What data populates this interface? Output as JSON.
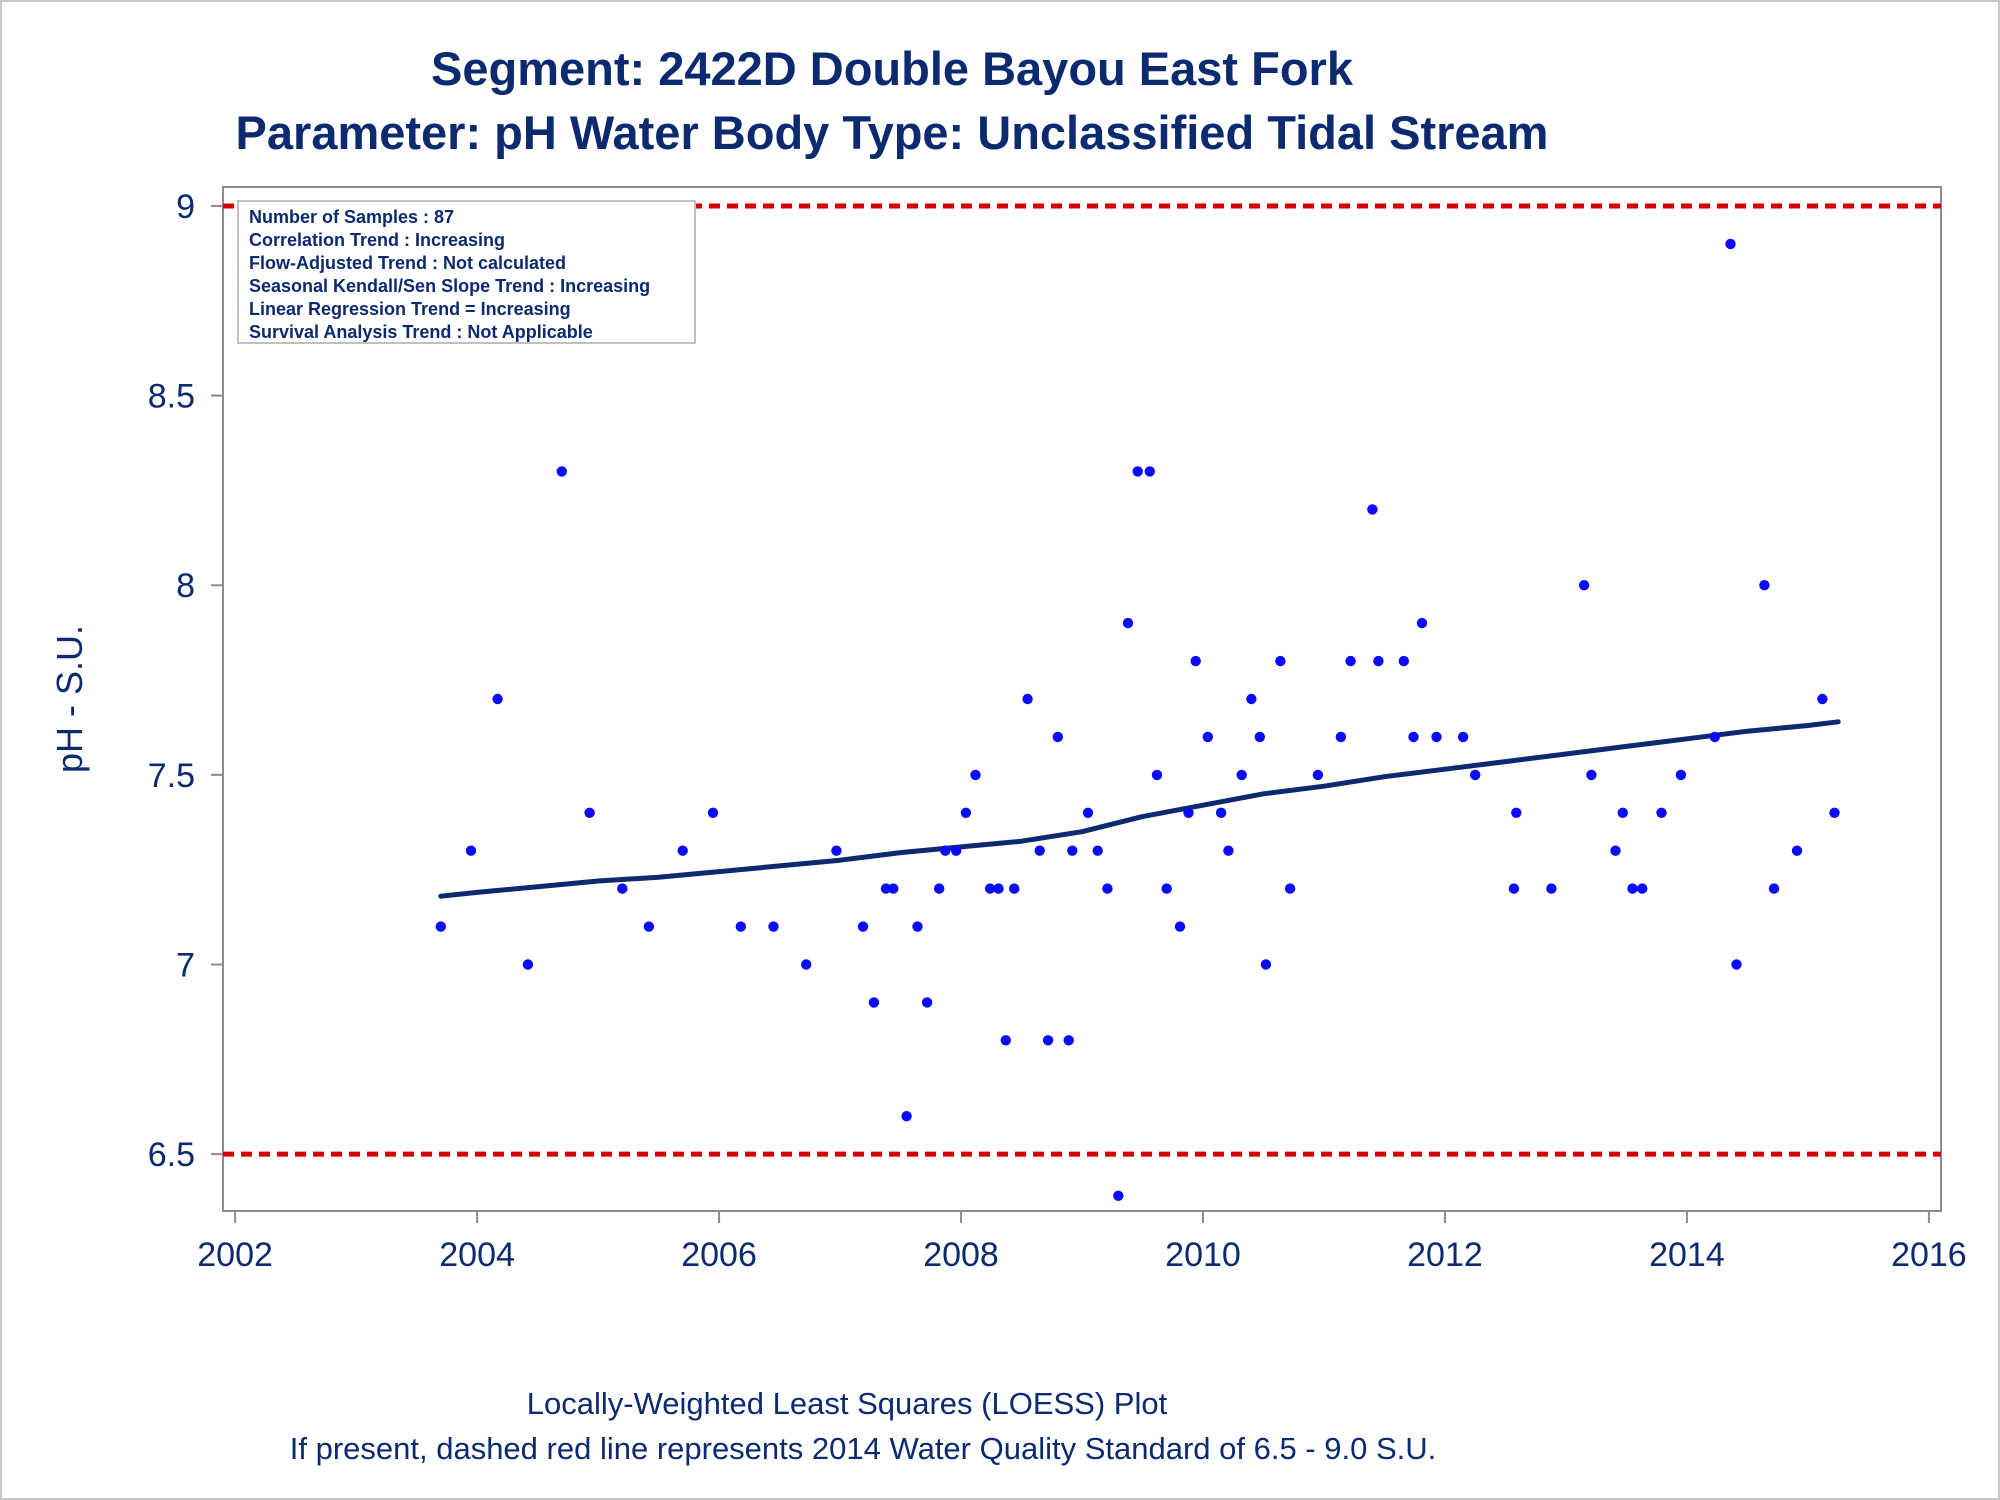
{
  "colors": {
    "text": "#0b2a6f",
    "point": "#0a0aff",
    "trend_line": "#0b2a6f",
    "standard_line": "#d40000",
    "axis": "#8c8c8c"
  },
  "chart_data": {
    "type": "scatter",
    "title": "Segment: 2422D  Double Bayou East Fork",
    "subtitle": "Parameter: pH   Water Body Type: Unclassified Tidal Stream",
    "xlabel": "",
    "ylabel": "pH - S.U.",
    "xlim": [
      2001.9,
      2016.1
    ],
    "ylim": [
      6.35,
      9.05
    ],
    "x_ticks": [
      "2002",
      "2004",
      "2006",
      "2008",
      "2010",
      "2012",
      "2014",
      "2016"
    ],
    "y_ticks": [
      "6.5",
      "7",
      "7.5",
      "8",
      "8.5",
      "9"
    ],
    "grid": false,
    "reference_lines": [
      9.0,
      6.5
    ],
    "info_box": [
      "Number of Samples : 87",
      "Correlation Trend : Increasing",
      "Flow-Adjusted Trend : Not calculated",
      "Seasonal Kendall/Sen Slope Trend : Increasing",
      "Linear Regression Trend = Increasing",
      "Survival Analysis Trend : Not Applicable"
    ],
    "footnotes": [
      "Locally-Weighted Least Squares (LOESS) Plot",
      "If present, dashed red line represents 2014 Water Quality Standard of 6.5 - 9.0 S.U."
    ],
    "series": [
      {
        "values": [
          [
            2003.7,
            7.1
          ],
          [
            2003.95,
            7.3
          ],
          [
            2004.17,
            7.7
          ],
          [
            2004.42,
            7.0
          ],
          [
            2004.7,
            8.3
          ],
          [
            2004.93,
            7.4
          ],
          [
            2005.2,
            7.2
          ],
          [
            2005.42,
            7.1
          ],
          [
            2005.7,
            7.3
          ],
          [
            2005.95,
            7.4
          ],
          [
            2006.18,
            7.1
          ],
          [
            2006.45,
            7.1
          ],
          [
            2006.72,
            7.0
          ],
          [
            2006.97,
            7.3
          ],
          [
            2007.19,
            7.1
          ],
          [
            2007.28,
            6.9
          ],
          [
            2007.38,
            7.2
          ],
          [
            2007.44,
            7.2
          ],
          [
            2007.55,
            6.6
          ],
          [
            2007.64,
            7.1
          ],
          [
            2007.72,
            6.9
          ],
          [
            2007.82,
            7.2
          ],
          [
            2007.87,
            7.3
          ],
          [
            2007.96,
            7.3
          ],
          [
            2008.04,
            7.4
          ],
          [
            2008.12,
            7.5
          ],
          [
            2008.24,
            7.2
          ],
          [
            2008.31,
            7.2
          ],
          [
            2008.37,
            6.8
          ],
          [
            2008.44,
            7.2
          ],
          [
            2008.55,
            7.7
          ],
          [
            2008.65,
            7.3
          ],
          [
            2008.72,
            6.8
          ],
          [
            2008.8,
            7.6
          ],
          [
            2008.89,
            6.8
          ],
          [
            2008.92,
            7.3
          ],
          [
            2009.05,
            7.4
          ],
          [
            2009.13,
            7.3
          ],
          [
            2009.21,
            7.2
          ],
          [
            2009.3,
            6.39
          ],
          [
            2009.38,
            7.9
          ],
          [
            2009.46,
            8.3
          ],
          [
            2009.56,
            8.3
          ],
          [
            2009.62,
            7.5
          ],
          [
            2009.7,
            7.2
          ],
          [
            2009.81,
            7.1
          ],
          [
            2009.88,
            7.4
          ],
          [
            2009.94,
            7.8
          ],
          [
            2010.04,
            7.6
          ],
          [
            2010.15,
            7.4
          ],
          [
            2010.21,
            7.3
          ],
          [
            2010.32,
            7.5
          ],
          [
            2010.4,
            7.7
          ],
          [
            2010.47,
            7.6
          ],
          [
            2010.52,
            7.0
          ],
          [
            2010.64,
            7.8
          ],
          [
            2010.72,
            7.2
          ],
          [
            2010.95,
            7.5
          ],
          [
            2011.14,
            7.6
          ],
          [
            2011.22,
            7.8
          ],
          [
            2011.4,
            8.2
          ],
          [
            2011.45,
            7.8
          ],
          [
            2011.66,
            7.8
          ],
          [
            2011.74,
            7.6
          ],
          [
            2011.81,
            7.9
          ],
          [
            2011.93,
            7.6
          ],
          [
            2012.15,
            7.6
          ],
          [
            2012.25,
            7.5
          ],
          [
            2012.57,
            7.2
          ],
          [
            2012.59,
            7.4
          ],
          [
            2012.88,
            7.2
          ],
          [
            2013.15,
            8.0
          ],
          [
            2013.21,
            7.5
          ],
          [
            2013.41,
            7.3
          ],
          [
            2013.47,
            7.4
          ],
          [
            2013.55,
            7.2
          ],
          [
            2013.63,
            7.2
          ],
          [
            2013.79,
            7.4
          ],
          [
            2013.95,
            7.5
          ],
          [
            2014.23,
            7.6
          ],
          [
            2014.36,
            8.9
          ],
          [
            2014.41,
            7.0
          ],
          [
            2014.64,
            8.0
          ],
          [
            2014.72,
            7.2
          ],
          [
            2014.91,
            7.3
          ],
          [
            2015.12,
            7.7
          ],
          [
            2015.22,
            7.4
          ]
        ]
      }
    ],
    "trend_line": [
      [
        2003.7,
        7.18
      ],
      [
        2004.0,
        7.19
      ],
      [
        2004.5,
        7.205
      ],
      [
        2005.0,
        7.22
      ],
      [
        2005.5,
        7.23
      ],
      [
        2006.0,
        7.245
      ],
      [
        2006.5,
        7.26
      ],
      [
        2007.0,
        7.275
      ],
      [
        2007.5,
        7.295
      ],
      [
        2008.0,
        7.31
      ],
      [
        2008.5,
        7.325
      ],
      [
        2009.0,
        7.35
      ],
      [
        2009.5,
        7.39
      ],
      [
        2010.0,
        7.42
      ],
      [
        2010.5,
        7.45
      ],
      [
        2011.0,
        7.47
      ],
      [
        2011.5,
        7.495
      ],
      [
        2012.0,
        7.515
      ],
      [
        2012.5,
        7.535
      ],
      [
        2013.0,
        7.555
      ],
      [
        2013.5,
        7.575
      ],
      [
        2014.0,
        7.595
      ],
      [
        2014.5,
        7.615
      ],
      [
        2015.0,
        7.63
      ],
      [
        2015.25,
        7.64
      ]
    ]
  }
}
